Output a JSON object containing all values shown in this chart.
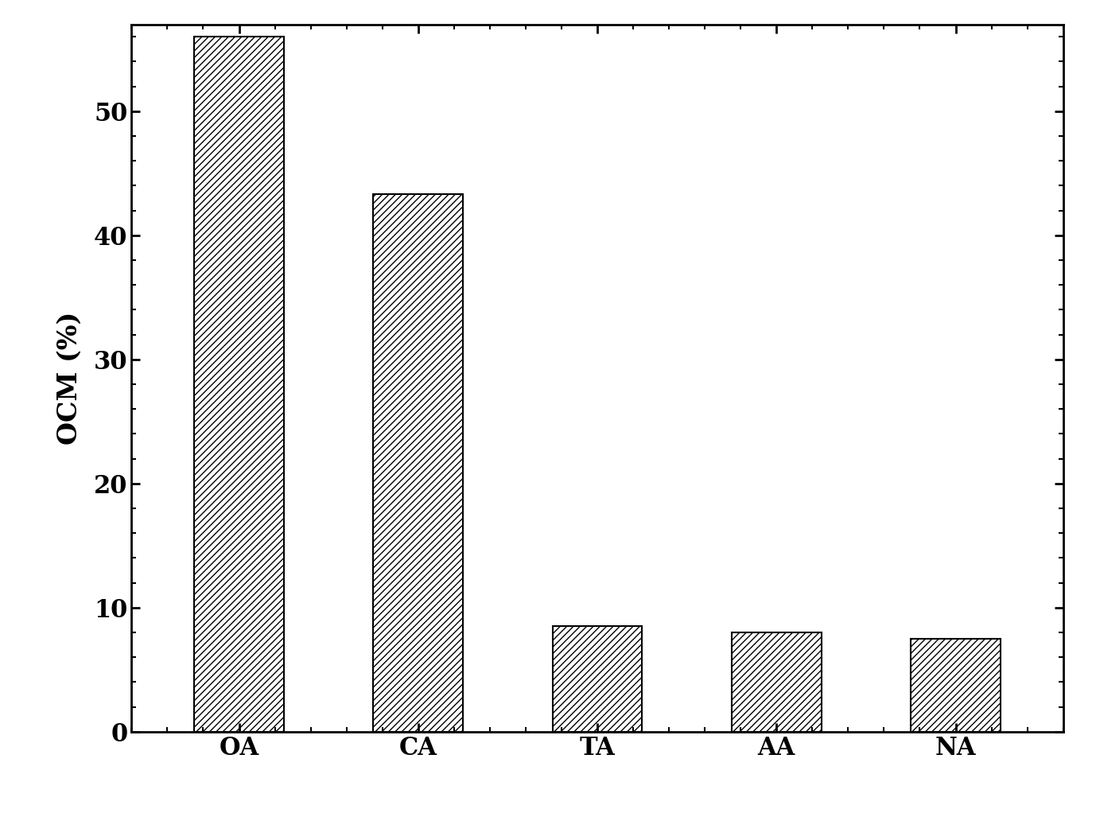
{
  "categories": [
    "OA",
    "CA",
    "TA",
    "AA",
    "NA"
  ],
  "values": [
    56.0,
    43.3,
    8.5,
    8.0,
    7.5
  ],
  "ylabel": "OCM (%)",
  "ylim": [
    0,
    57
  ],
  "yticks": [
    0,
    10,
    20,
    30,
    40,
    50
  ],
  "bar_color": "#ffffff",
  "hatch_pattern": "////",
  "edge_color": "#000000",
  "background_color": "#ffffff",
  "bar_width": 0.5,
  "tick_fontsize": 22,
  "ylabel_fontsize": 24,
  "xlabel_fontsize": 22
}
